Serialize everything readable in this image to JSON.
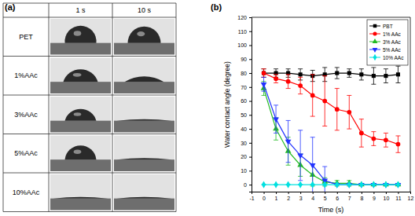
{
  "panel_a": {
    "label": "(a)",
    "columns": [
      "1 s",
      "10 s"
    ],
    "rows": [
      "PET",
      "1%AAc",
      "3%AAc",
      "5%AAc",
      "10%AAc"
    ]
  },
  "chart_data": {
    "type": "line",
    "annotations": [
      "(b)"
    ],
    "x_label": "Time (s)",
    "y_label": "Water contact angle (degree)",
    "x": [
      0,
      1,
      2,
      3,
      4,
      5,
      6,
      7,
      8,
      9,
      10,
      11
    ],
    "xlim": [
      -1,
      12
    ],
    "xticks": [
      -1,
      0,
      1,
      2,
      3,
      4,
      5,
      6,
      7,
      8,
      9,
      10,
      11,
      12
    ],
    "ylim": [
      -5,
      120
    ],
    "yticks": [
      0,
      10,
      20,
      30,
      40,
      50,
      60,
      70,
      80,
      90,
      100,
      110,
      120
    ],
    "grid": false,
    "legend": "upper right",
    "series": [
      {
        "name": "PBT",
        "color": "#000000",
        "marker": "square",
        "values": [
          80,
          80,
          80,
          79,
          78,
          79,
          80,
          80,
          79,
          78,
          78,
          79
        ],
        "errors": [
          3,
          3,
          3,
          4,
          4,
          5,
          4,
          3,
          4,
          6,
          5,
          6
        ]
      },
      {
        "name": "1% AAc",
        "color": "#ff0000",
        "marker": "circle",
        "values": [
          80,
          76,
          74,
          71,
          64,
          60,
          54,
          52,
          37,
          33,
          32,
          29
        ],
        "errors": [
          3,
          3,
          5,
          6,
          15,
          18,
          15,
          12,
          10,
          5,
          5,
          6
        ]
      },
      {
        "name": "3% AAc",
        "color": "#22bb22",
        "marker": "triangle",
        "values": [
          69,
          40,
          24,
          14,
          7,
          2,
          1,
          1,
          0,
          0,
          0,
          0
        ],
        "errors": [
          5,
          8,
          10,
          8,
          8,
          3,
          2,
          2,
          0,
          0,
          0,
          0
        ]
      },
      {
        "name": "5% AAc",
        "color": "#2233ff",
        "marker": "triangle-down",
        "values": [
          72,
          47,
          31,
          21,
          14,
          3,
          0,
          0,
          0,
          0,
          0,
          0
        ],
        "errors": [
          5,
          10,
          15,
          18,
          20,
          10,
          0,
          0,
          0,
          0,
          0,
          0
        ]
      },
      {
        "name": "10% AAc",
        "color": "#00e0e0",
        "marker": "diamond",
        "values": [
          0,
          0,
          0,
          0,
          0,
          0,
          0,
          0,
          0,
          0,
          0,
          0
        ],
        "errors": [
          0,
          0,
          0,
          0,
          0,
          0,
          0,
          0,
          0,
          0,
          0,
          0
        ]
      }
    ]
  }
}
